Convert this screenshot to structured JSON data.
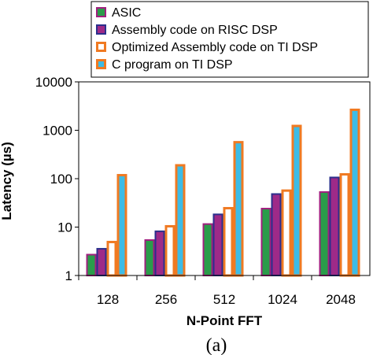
{
  "chart_data": {
    "type": "bar",
    "scale": "log",
    "grid": false,
    "legend_position": "top",
    "xlabel": "N-Point FFT",
    "ylabel": "Latency (µs)",
    "caption": "(a)",
    "categories": [
      "128",
      "256",
      "512",
      "1024",
      "2048"
    ],
    "yticks": [
      "1",
      "10",
      "100",
      "1000",
      "10000"
    ],
    "ylim": [
      1,
      10000
    ],
    "series": [
      {
        "name": "ASIC",
        "fill": "#2a9c4a",
        "edge": "#a01f7f",
        "values": [
          2.8,
          5.6,
          12,
          25,
          55
        ]
      },
      {
        "name": "Assembly code on RISC DSP",
        "fill": "#9e2a88",
        "edge": "#2b2f8c",
        "values": [
          3.7,
          8.5,
          19,
          50,
          110
        ]
      },
      {
        "name": "Optimized Assembly code on TI DSP",
        "fill": "#ffffff",
        "edge": "#f07a22",
        "values": [
          5.2,
          11,
          26,
          60,
          130
        ]
      },
      {
        "name": "C program on TI DSP",
        "fill": "#3dbce6",
        "edge": "#f07a22",
        "values": [
          125,
          200,
          600,
          1300,
          2800
        ]
      }
    ]
  }
}
